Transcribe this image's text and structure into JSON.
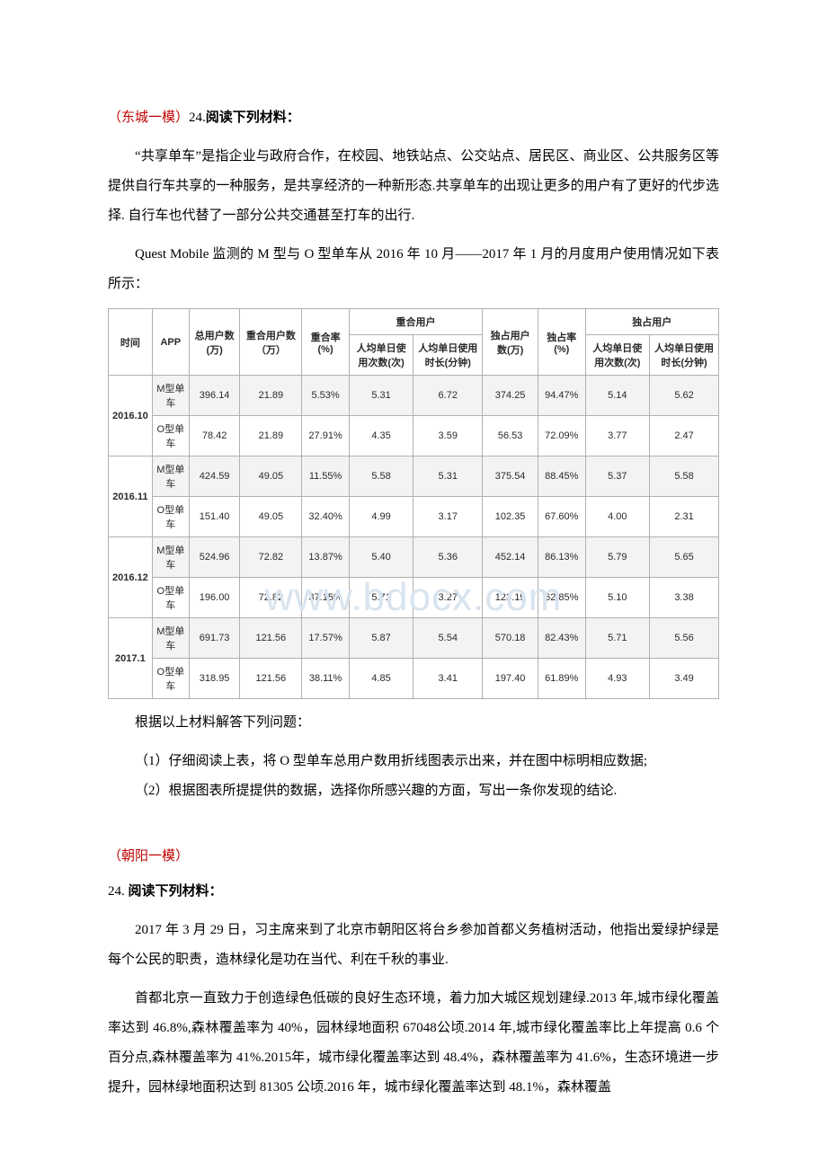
{
  "watermark": "www.bdocx.com",
  "q1": {
    "source_label": "（东城一模）",
    "qnum": "24.",
    "title": "阅读下列材料：",
    "para1": "“共享单车”是指企业与政府合作，在校园、地铁站点、公交站点、居民区、商业区、公共服务区等提供自行车共享的一种服务，是共享经济的一种新形态.共享单车的出现让更多的用户有了更好的代步选择. 自行车也代替了一部分公共交通甚至打车的出行.",
    "para2": "Quest Mobile 监测的 M 型与 O 型单车从 2016 年 10 月——2017 年 1 月的月度用户使用情况如下表所示：",
    "after_table": "根据以上材料解答下列问题：",
    "sub1": "（1）仔细阅读上表，将 O 型单车总用户数用折线图表示出来，并在图中标明相应数据;",
    "sub2": "（2）根据图表所提提供的数据，选择你所感兴趣的方面，写出一条你发现的结论."
  },
  "table": {
    "head": {
      "time": "时间",
      "app": "APP",
      "total_users": "总用户数(万)",
      "overlap_users": "重合用户数（万）",
      "overlap_rate": "重合率(%)",
      "overlap_group": "重合用户",
      "exclusive_users": "独占用户数(万)",
      "exclusive_rate": "独占率(%)",
      "exclusive_group": "独占用户",
      "avg_times": "人均单日使用次数(次)",
      "avg_duration": "人均单日使用时长(分钟)"
    },
    "periods": [
      {
        "month": "2016.10",
        "rows": [
          {
            "app": "M型单车",
            "total": "396.14",
            "ov_users": "21.89",
            "ov_rate": "5.53%",
            "ov_times": "5.31",
            "ov_dur": "6.72",
            "ex_users": "374.25",
            "ex_rate": "94.47%",
            "ex_times": "5.14",
            "ex_dur": "5.62"
          },
          {
            "app": "O型单车",
            "total": "78.42",
            "ov_users": "21.89",
            "ov_rate": "27.91%",
            "ov_times": "4.35",
            "ov_dur": "3.59",
            "ex_users": "56.53",
            "ex_rate": "72.09%",
            "ex_times": "3.77",
            "ex_dur": "2.47"
          }
        ]
      },
      {
        "month": "2016.11",
        "rows": [
          {
            "app": "M型单车",
            "total": "424.59",
            "ov_users": "49.05",
            "ov_rate": "11.55%",
            "ov_times": "5.58",
            "ov_dur": "5.31",
            "ex_users": "375.54",
            "ex_rate": "88.45%",
            "ex_times": "5.37",
            "ex_dur": "5.58"
          },
          {
            "app": "O型单车",
            "total": "151.40",
            "ov_users": "49.05",
            "ov_rate": "32.40%",
            "ov_times": "4.99",
            "ov_dur": "3.17",
            "ex_users": "102.35",
            "ex_rate": "67.60%",
            "ex_times": "4.00",
            "ex_dur": "2.31"
          }
        ]
      },
      {
        "month": "2016.12",
        "rows": [
          {
            "app": "M型单车",
            "total": "524.96",
            "ov_users": "72.82",
            "ov_rate": "13.87%",
            "ov_times": "5.40",
            "ov_dur": "5.36",
            "ex_users": "452.14",
            "ex_rate": "86.13%",
            "ex_times": "5.79",
            "ex_dur": "5.65"
          },
          {
            "app": "O型单车",
            "total": "196.00",
            "ov_users": "72.82",
            "ov_rate": "37.15%",
            "ov_times": "5.71",
            "ov_dur": "3.27",
            "ex_users": "123.19",
            "ex_rate": "62.85%",
            "ex_times": "5.10",
            "ex_dur": "3.38"
          }
        ]
      },
      {
        "month": "2017.1",
        "rows": [
          {
            "app": "M型单车",
            "total": "691.73",
            "ov_users": "121.56",
            "ov_rate": "17.57%",
            "ov_times": "5.87",
            "ov_dur": "5.54",
            "ex_users": "570.18",
            "ex_rate": "82.43%",
            "ex_times": "5.71",
            "ex_dur": "5.56"
          },
          {
            "app": "O型单车",
            "total": "318.95",
            "ov_users": "121.56",
            "ov_rate": "38.11%",
            "ov_times": "4.85",
            "ov_dur": "3.41",
            "ex_users": "197.40",
            "ex_rate": "61.89%",
            "ex_times": "4.93",
            "ex_dur": "3.49"
          }
        ]
      }
    ]
  },
  "q2": {
    "source_label": "（朝阳一模）",
    "qnum": "24.",
    "title": " 阅读下列材料：",
    "para1": "2017 年 3 月 29 日，习主席来到了北京市朝阳区将台乡参加首都义务植树活动，他指出爱绿护绿是每个公民的职责，造林绿化是功在当代、利在千秋的事业.",
    "para2": "首都北京一直致力于创造绿色低碳的良好生态环境，着力加大城区规划建绿.2013 年,城市绿化覆盖率达到 46.8%,森林覆盖率为 40%，园林绿地面积 67048公顷.2014 年,城市绿化覆盖率比上年提高 0.6 个百分点,森林覆盖率为 41%.2015年，城市绿化覆盖率达到 48.4%，森林覆盖率为 41.6%，生态环境进一步提升，园林绿地面积达到 81305 公顷.2016 年，城市绿化覆盖率达到 48.1%，森林覆盖"
  }
}
